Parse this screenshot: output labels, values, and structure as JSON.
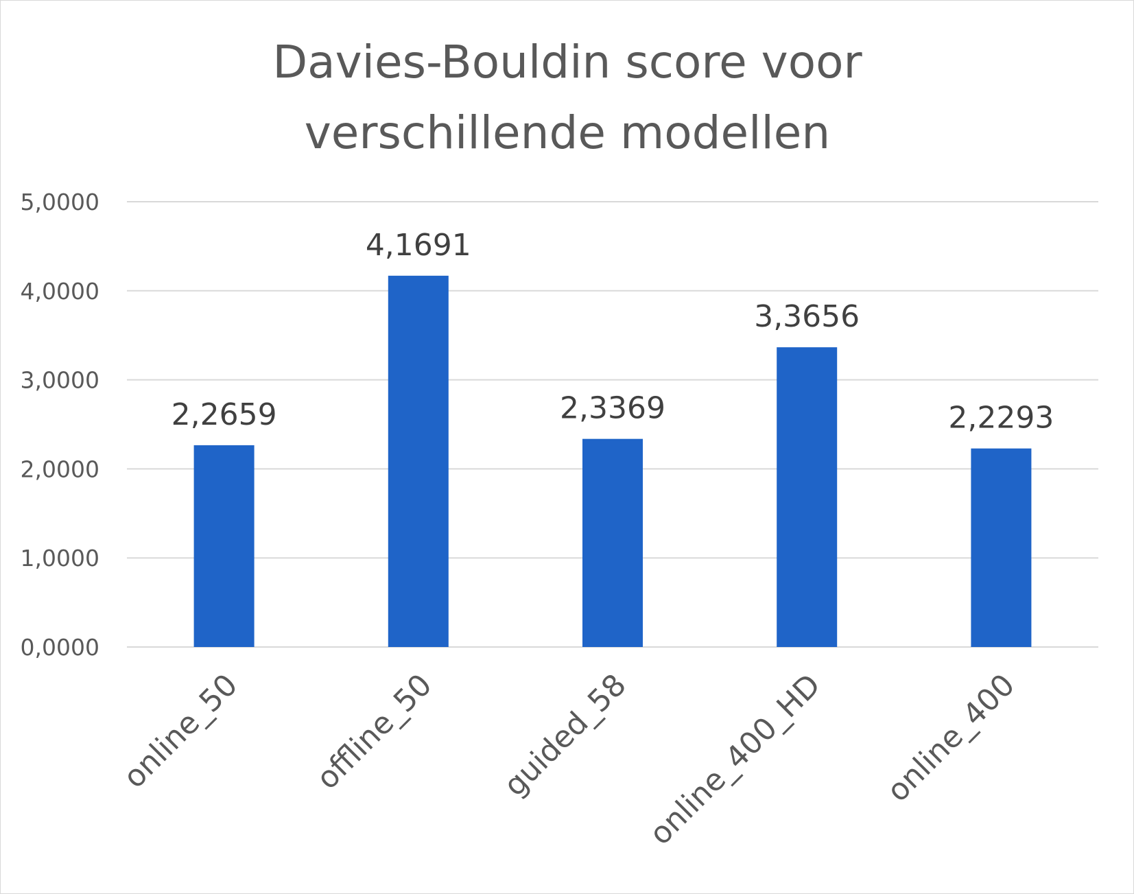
{
  "chart_data": {
    "type": "bar",
    "title": "Davies-Bouldin score voor verschillende modellen",
    "title_lines": [
      "Davies-Bouldin score voor",
      "verschillende modellen"
    ],
    "categories": [
      "online_50",
      "offline_50",
      "guided_58",
      "online_400_HD",
      "online_400"
    ],
    "values": [
      2.2659,
      4.1691,
      2.3369,
      3.3656,
      2.2293
    ],
    "data_labels": [
      "2,2659",
      "4,1691",
      "2,3369",
      "3,3656",
      "2,2293"
    ],
    "y_ticks": [
      0,
      1,
      2,
      3,
      4,
      5
    ],
    "y_tick_labels": [
      "0,0000",
      "1,0000",
      "2,0000",
      "3,0000",
      "4,0000",
      "5,0000"
    ],
    "ylim": [
      0,
      5
    ],
    "xlabel": "",
    "ylabel": "",
    "grid": true,
    "legend": "none",
    "bar_color": "#1f64c8",
    "text_color": "#595959"
  }
}
